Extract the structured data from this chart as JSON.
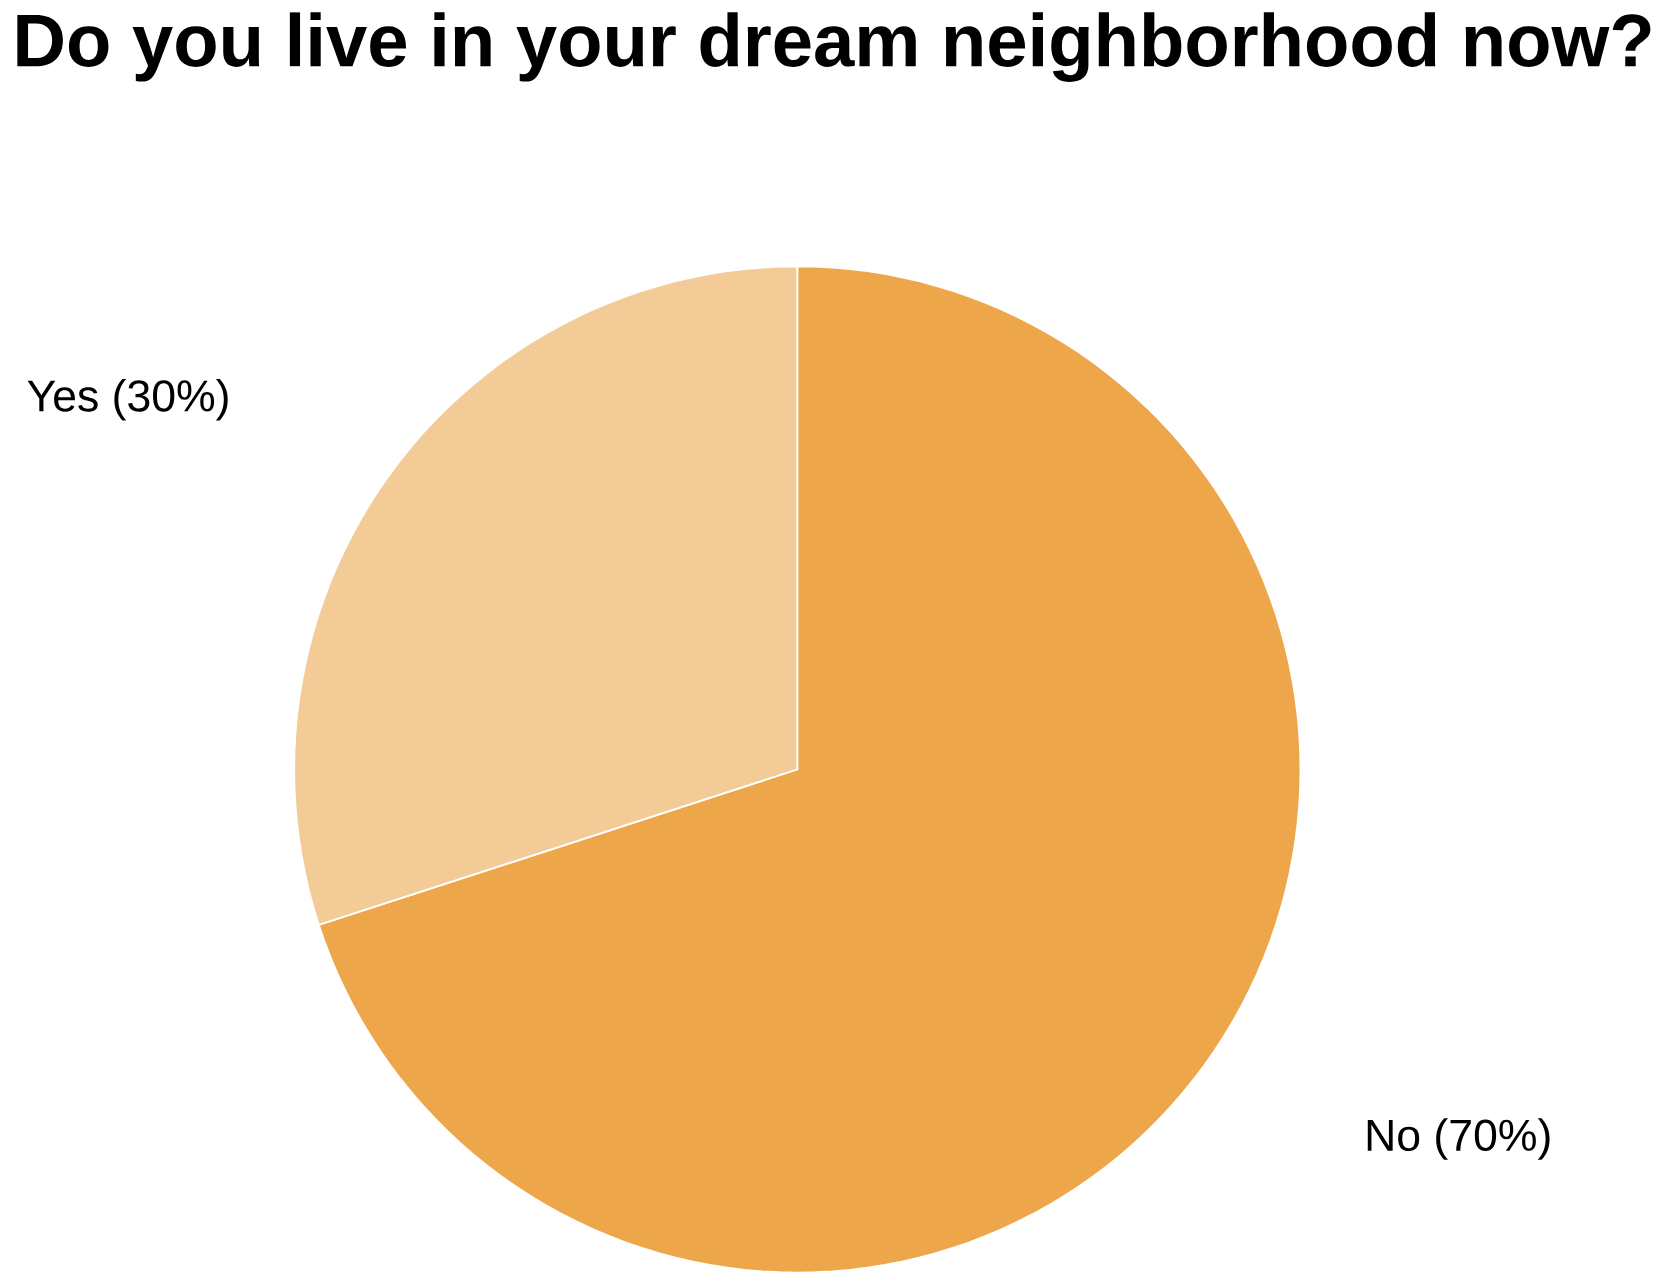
{
  "chart_data": {
    "type": "pie",
    "title": "Do you live in your dream neighborhood now?",
    "categories": [
      "No",
      "Yes"
    ],
    "values": [
      70,
      30
    ],
    "colors": [
      "#eda74a",
      "#f3cb96"
    ],
    "value_labels": [
      "(70%)",
      "(30%)"
    ]
  }
}
